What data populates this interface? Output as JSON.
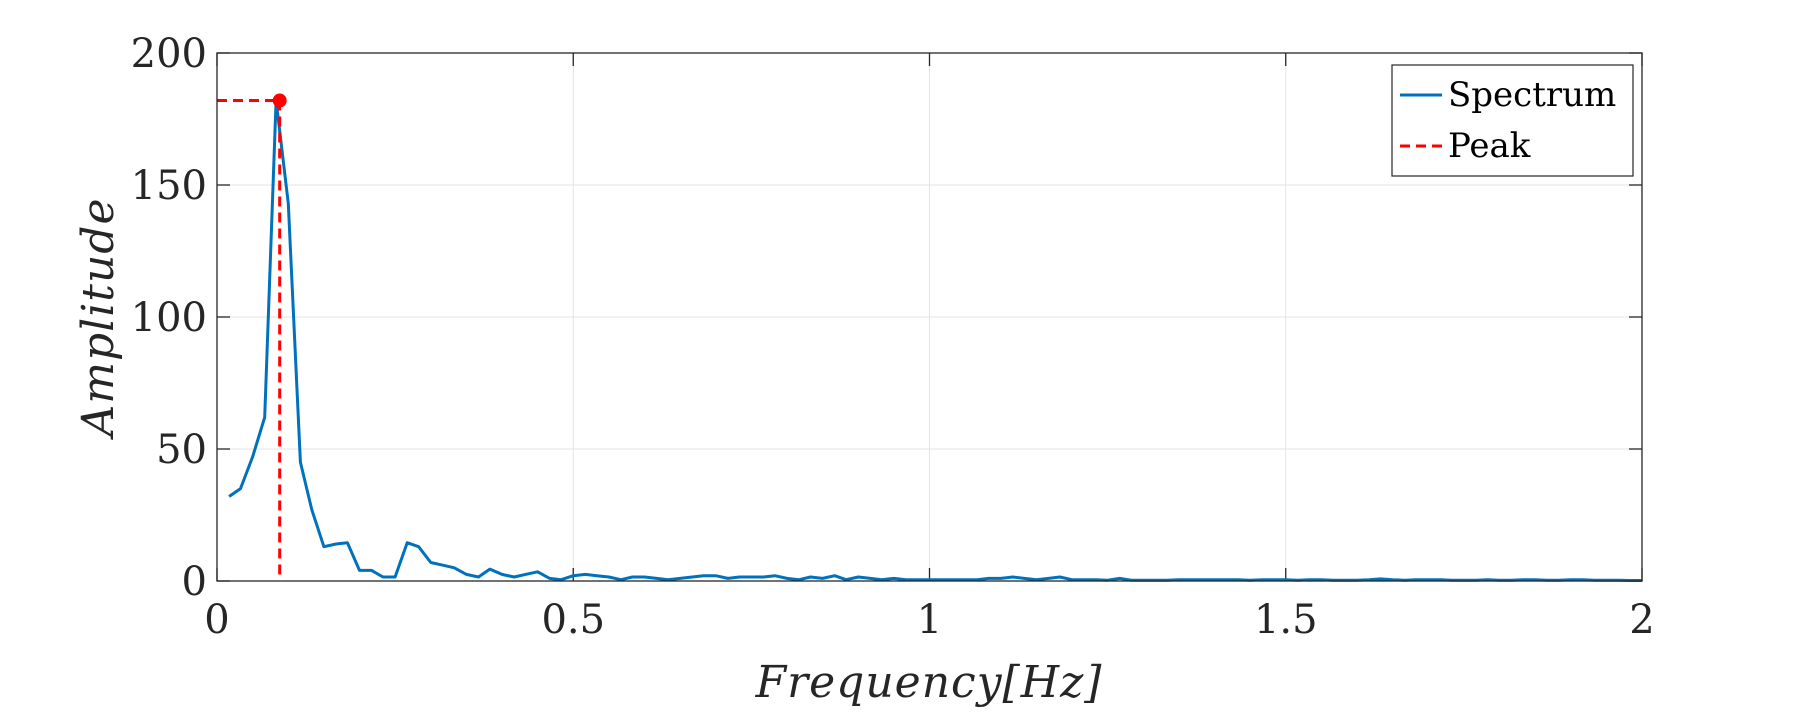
{
  "chart_data": {
    "type": "line",
    "xlabel": "Frequency[Hz]",
    "ylabel": "Amplitude",
    "xlim": [
      0,
      2
    ],
    "ylim": [
      0,
      200
    ],
    "x_ticks": [
      0,
      0.5,
      1,
      1.5,
      2
    ],
    "x_tick_labels": [
      "0",
      "0.5",
      "1",
      "1.5",
      "2"
    ],
    "y_ticks": [
      0,
      50,
      100,
      150,
      200
    ],
    "y_tick_labels": [
      "0",
      "50",
      "100",
      "150",
      "200"
    ],
    "grid": true,
    "legend_position": "top-right",
    "legend": [
      "Spectrum",
      "Peak"
    ],
    "series": [
      {
        "name": "Spectrum",
        "color": "#0072BD",
        "x": [
          0.017,
          0.033,
          0.05,
          0.067,
          0.083,
          0.1,
          0.117,
          0.133,
          0.15,
          0.167,
          0.183,
          0.2,
          0.217,
          0.233,
          0.25,
          0.267,
          0.283,
          0.3,
          0.317,
          0.333,
          0.35,
          0.367,
          0.383,
          0.4,
          0.417,
          0.433,
          0.45,
          0.467,
          0.483,
          0.5,
          0.517,
          0.533,
          0.55,
          0.567,
          0.583,
          0.6,
          0.617,
          0.633,
          0.65,
          0.667,
          0.683,
          0.7,
          0.717,
          0.733,
          0.75,
          0.767,
          0.783,
          0.8,
          0.817,
          0.833,
          0.85,
          0.867,
          0.883,
          0.9,
          0.917,
          0.933,
          0.95,
          0.967,
          0.983,
          1.0,
          1.017,
          1.033,
          1.05,
          1.067,
          1.083,
          1.1,
          1.117,
          1.133,
          1.15,
          1.167,
          1.183,
          1.2,
          1.217,
          1.233,
          1.25,
          1.267,
          1.283,
          1.3,
          1.317,
          1.333,
          1.35,
          1.367,
          1.383,
          1.4,
          1.417,
          1.433,
          1.45,
          1.467,
          1.483,
          1.5,
          1.517,
          1.533,
          1.55,
          1.567,
          1.583,
          1.6,
          1.617,
          1.633,
          1.65,
          1.667,
          1.683,
          1.7,
          1.717,
          1.733,
          1.75,
          1.767,
          1.783,
          1.8,
          1.817,
          1.833,
          1.85,
          1.867,
          1.883,
          1.9,
          1.917,
          1.933,
          1.95,
          1.967,
          1.983,
          2.0
        ],
        "y": [
          32,
          35,
          47,
          62,
          182,
          143,
          45,
          27,
          13,
          14,
          14.5,
          4,
          4,
          1.5,
          1.5,
          14.5,
          13,
          7,
          6,
          5,
          2.5,
          1.5,
          4.5,
          2.5,
          1.5,
          2.5,
          3.5,
          1,
          0.5,
          2,
          2.5,
          2,
          1.5,
          0.5,
          1.5,
          1.5,
          1,
          0.5,
          1,
          1.5,
          2,
          2,
          1,
          1.5,
          1.5,
          1.5,
          2,
          1,
          0.5,
          1.5,
          1,
          2,
          0.5,
          1.5,
          1,
          0.5,
          1,
          0.5,
          0.5,
          0.5,
          0.5,
          0.5,
          0.5,
          0.5,
          1,
          1,
          1.5,
          1,
          0.5,
          1,
          1.5,
          0.5,
          0.5,
          0.5,
          0.3,
          1,
          0.3,
          0.3,
          0.3,
          0.3,
          0.5,
          0.5,
          0.5,
          0.5,
          0.5,
          0.5,
          0.3,
          0.5,
          0.5,
          0.5,
          0.3,
          0.5,
          0.5,
          0.3,
          0.3,
          0.3,
          0.5,
          0.8,
          0.5,
          0.3,
          0.5,
          0.5,
          0.5,
          0.3,
          0.3,
          0.3,
          0.5,
          0.3,
          0.3,
          0.5,
          0.5,
          0.3,
          0.3,
          0.5,
          0.5,
          0.3,
          0.3,
          0.3,
          0.2,
          0.2
        ]
      },
      {
        "name": "Peak",
        "color": "#FF0000",
        "style": "dashed",
        "x": [
          0.088
        ],
        "y": [
          182
        ]
      }
    ]
  }
}
